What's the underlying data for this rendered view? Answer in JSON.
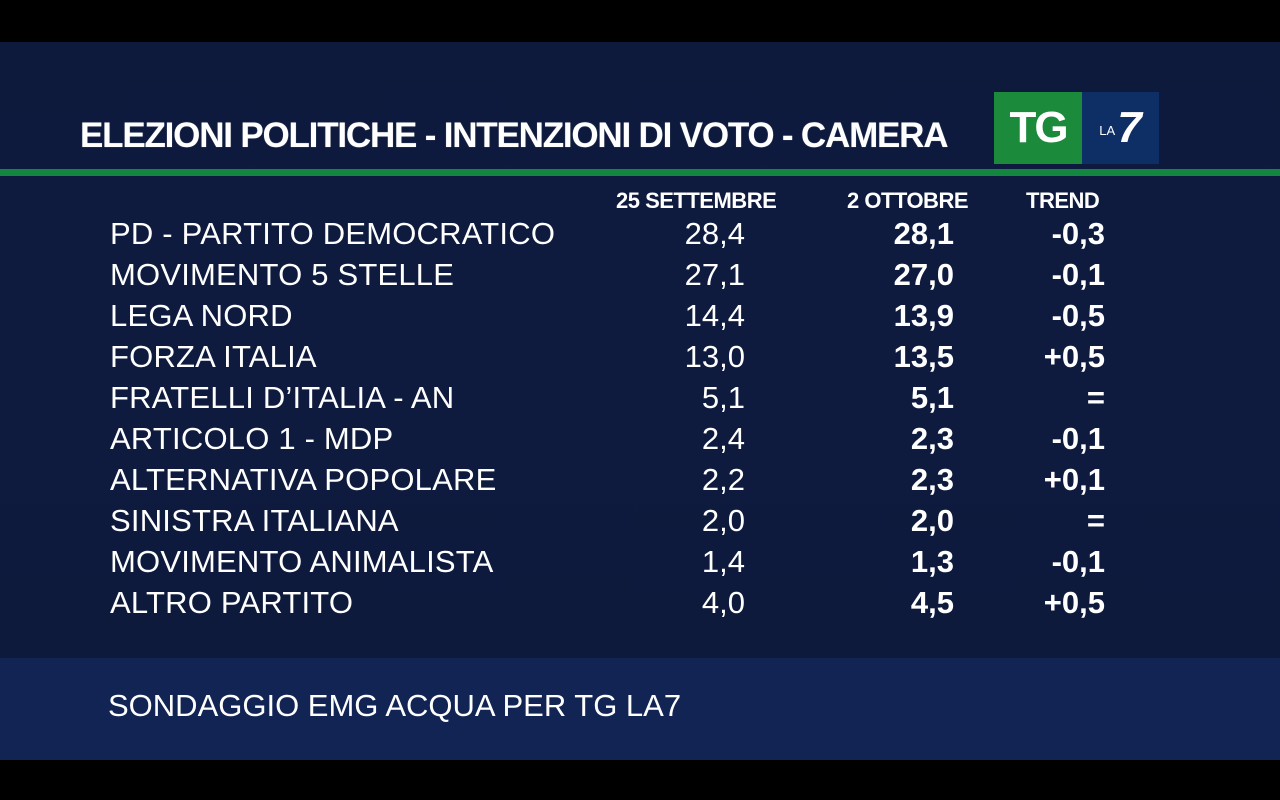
{
  "title": "ELEZIONI POLITICHE - INTENZIONI DI VOTO - CAMERA",
  "logo": {
    "tg": "TG",
    "la": "LA",
    "seven": "7"
  },
  "columns": {
    "date1": "25 SETTEMBRE",
    "date2": "2 OTTOBRE",
    "trend": "TREND"
  },
  "rows": [
    {
      "party": "PD - PARTITO DEMOCRATICO",
      "v1": "28,4",
      "v2": "28,1",
      "trend": "-0,3"
    },
    {
      "party": "MOVIMENTO 5 STELLE",
      "v1": "27,1",
      "v2": "27,0",
      "trend": "-0,1"
    },
    {
      "party": "LEGA NORD",
      "v1": "14,4",
      "v2": "13,9",
      "trend": "-0,5"
    },
    {
      "party": "FORZA ITALIA",
      "v1": "13,0",
      "v2": "13,5",
      "trend": "+0,5"
    },
    {
      "party": "FRATELLI D’ITALIA - AN",
      "v1": "5,1",
      "v2": "5,1",
      "trend": "="
    },
    {
      "party": "ARTICOLO 1 - MDP",
      "v1": "2,4",
      "v2": "2,3",
      "trend": "-0,1"
    },
    {
      "party": "ALTERNATIVA POPOLARE",
      "v1": "2,2",
      "v2": "2,3",
      "trend": "+0,1"
    },
    {
      "party": "SINISTRA ITALIANA",
      "v1": "2,0",
      "v2": "2,0",
      "trend": "="
    },
    {
      "party": "MOVIMENTO ANIMALISTA",
      "v1": "1,4",
      "v2": "1,3",
      "trend": "-0,1"
    },
    {
      "party": "ALTRO PARTITO",
      "v1": "4,0",
      "v2": "4,5",
      "trend": "+0,5"
    }
  ],
  "footer": "SONDAGGIO EMG ACQUA PER TG LA7",
  "colors": {
    "background": "#0d1a3c",
    "accent_green": "#13873f",
    "footer_bar": "#112454",
    "text": "#ffffff"
  }
}
